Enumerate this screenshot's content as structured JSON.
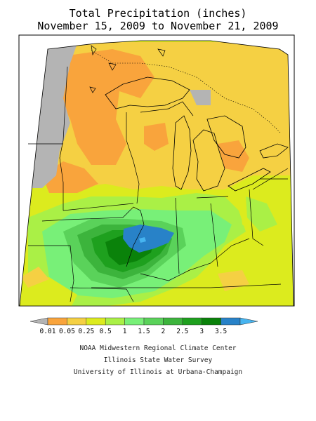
{
  "title": {
    "line1": "Total Precipitation (inches)",
    "line2": "November 15, 2009 to November 21, 2009"
  },
  "legend": {
    "colors": [
      "#b4b4b4",
      "#f9a43c",
      "#f5d043",
      "#dceb1e",
      "#aaf046",
      "#78f078",
      "#5ad25a",
      "#3cb43c",
      "#1ea01e",
      "#0a820a",
      "#2882c8",
      "#46b4f0"
    ],
    "labels": [
      "0.01",
      "0.05",
      "0.25",
      "0.5",
      "1",
      "1.5",
      "2",
      "2.5",
      "3",
      "3.5"
    ]
  },
  "credits": {
    "line1": "NOAA Midwestern Regional Climate Center",
    "line2": "Illinois State Water Survey",
    "line3": "University of Illinois at Urbana-Champaign"
  }
}
